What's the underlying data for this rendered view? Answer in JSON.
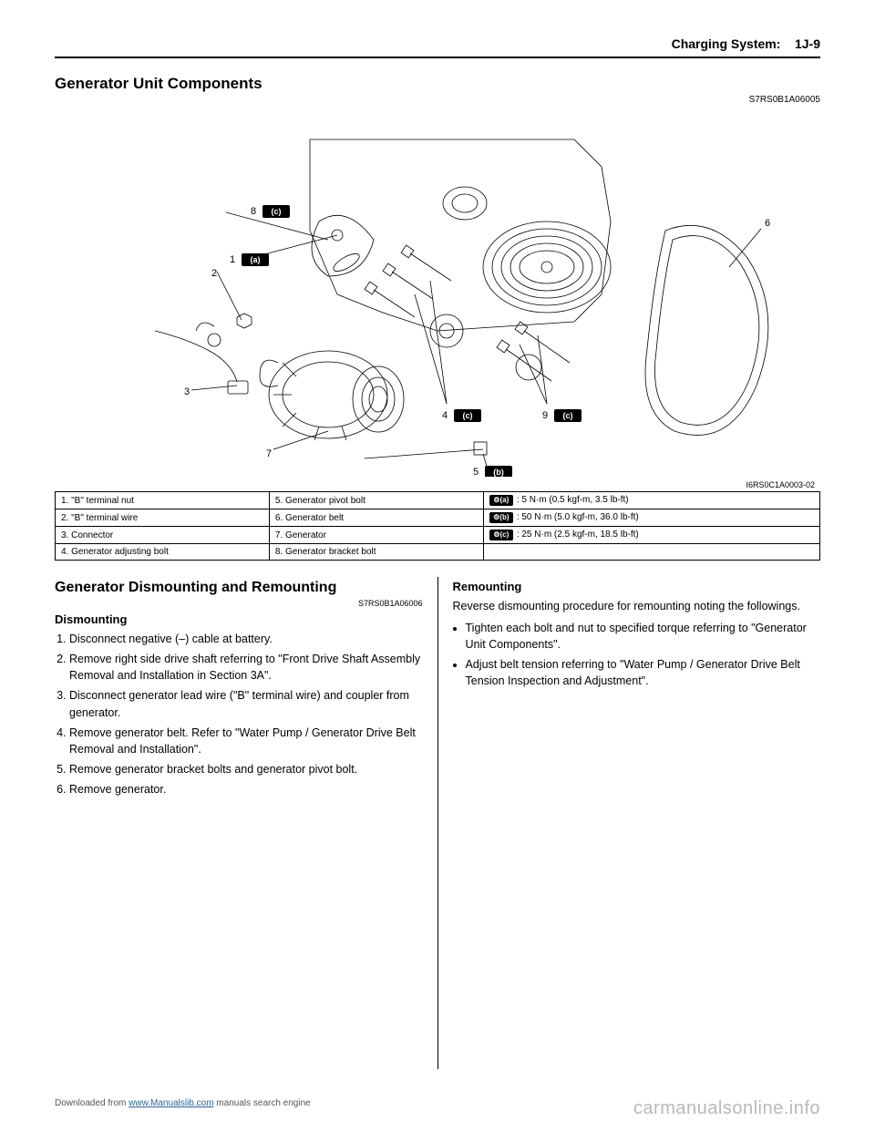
{
  "header": {
    "chapter": "Charging System:",
    "page": "1J-9"
  },
  "section1": {
    "title": "Generator Unit Components",
    "code": "S7RS0B1A06005",
    "diagram_id": "I6RS0C1A0003-02",
    "callouts": {
      "1": "1",
      "2": "2",
      "3": "3",
      "4": "4",
      "5": "5",
      "6": "6",
      "7": "7",
      "8": "8",
      "9": "9",
      "a": "(a)",
      "b": "(b)",
      "c": "(c)"
    },
    "table": {
      "rows": [
        [
          "1. \"B\" terminal nut",
          "5. Generator pivot bolt",
          {
            "icon": "(a)",
            "text": ": 5 N·m (0.5 kgf-m, 3.5 lb-ft)"
          }
        ],
        [
          "2. \"B\" terminal wire",
          "6. Generator belt",
          {
            "icon": "(b)",
            "text": ": 50 N·m (5.0 kgf-m, 36.0 lb-ft)"
          }
        ],
        [
          "3. Connector",
          "7. Generator",
          {
            "icon": "(c)",
            "text": ": 25 N·m (2.5 kgf-m, 18.5 lb-ft)"
          }
        ],
        [
          "4. Generator adjusting bolt",
          "8. Generator bracket bolt",
          null
        ]
      ]
    }
  },
  "section2": {
    "title": "Generator Dismounting and Remounting",
    "code": "S7RS0B1A06006",
    "left": {
      "heading": "Dismounting",
      "steps": [
        "Disconnect negative (–) cable at battery.",
        "Remove right side drive shaft referring to \"Front Drive Shaft Assembly Removal and Installation in Section 3A\".",
        "Disconnect generator lead wire (\"B\" terminal wire) and coupler from generator.",
        "Remove generator belt. Refer to \"Water Pump / Generator Drive Belt Removal and Installation\".",
        "Remove generator bracket bolts and generator pivot bolt.",
        "Remove generator."
      ]
    },
    "right": {
      "heading": "Remounting",
      "intro": "Reverse dismounting procedure for remounting noting the followings.",
      "bullets": [
        "Tighten each bolt and nut to specified torque referring to \"Generator Unit Components\".",
        "Adjust belt tension referring to \"Water Pump / Generator Drive Belt Tension Inspection and Adjustment\"."
      ]
    }
  },
  "footer": {
    "left_pre": "Downloaded from ",
    "left_link": "www.Manualslib.com",
    "left_post": " manuals search engine",
    "right": "carmanualsonline.info"
  }
}
